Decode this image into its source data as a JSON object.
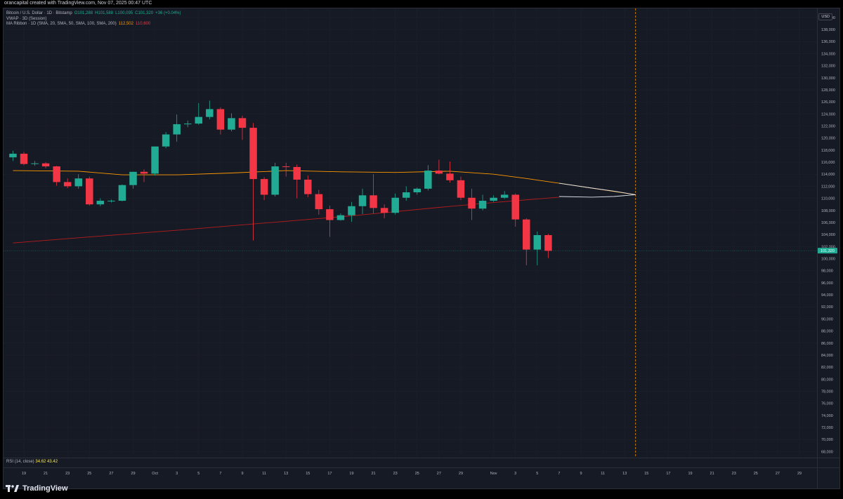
{
  "header": {
    "note": "orancapital created with TradingView.com, Nov 07, 2025 00:47 UTC"
  },
  "legend": {
    "symbol": "Bitcoin / U.S. Dollar · 1D · Bitstamp",
    "ohlc": {
      "o": "O101,288",
      "h": "H101,588",
      "l": "L100,095",
      "c": "C101,320",
      "change": "+36 (+0.04%)"
    },
    "vwap": "VWAP · 3D (Session)",
    "ma_ribbon_label": "MA Ribbon · 1D (SMA, 20, SMA, 50, SMA, 100, SMA, 200)",
    "ma_ribbon_values": [
      "112,502",
      "110,600"
    ]
  },
  "rsi": {
    "label": "RSI (14, close)",
    "value1": "34.62",
    "value2": "43.42"
  },
  "price_label": "101,320",
  "axis_currency": "USD",
  "brand": "TradingView",
  "colors": {
    "background": "#161a25",
    "up": "#22ab94",
    "down": "#f23645",
    "ma50": "#ff9800",
    "ma200": "#b71c1c",
    "vwap_band": "#e0e3eb",
    "future_line": "#ff9800"
  },
  "chart_data": {
    "type": "candlestick",
    "ylim": [
      67000,
      141500
    ],
    "y_ticks": [
      68000,
      70000,
      72000,
      74000,
      76000,
      78000,
      80000,
      82000,
      84000,
      86000,
      88000,
      90000,
      92000,
      94000,
      96000,
      98000,
      100000,
      102000,
      104000,
      106000,
      108000,
      110000,
      112000,
      114000,
      116000,
      118000,
      120000,
      122000,
      124000,
      126000,
      128000,
      130000,
      132000,
      134000,
      136000,
      138000,
      140000
    ],
    "y_tick_labels": [
      "68,000",
      "70,000",
      "72,000",
      "74,000",
      "76,000",
      "78,000",
      "80,000",
      "82,000",
      "84,000",
      "86,000",
      "88,000",
      "90,000",
      "92,000",
      "94,000",
      "96,000",
      "98,000",
      "100,000",
      "102,000",
      "104,000",
      "106,000",
      "108,000",
      "110,000",
      "112,000",
      "114,000",
      "116,000",
      "118,000",
      "120,000",
      "122,000",
      "124,000",
      "126,000",
      "128,000",
      "130,000",
      "132,000",
      "134,000",
      "136,000",
      "138,000",
      "140,000"
    ],
    "x_ticks": [
      {
        "date": "2025-09-19",
        "label": "19"
      },
      {
        "date": "2025-09-21",
        "label": "21"
      },
      {
        "date": "2025-09-23",
        "label": "23"
      },
      {
        "date": "2025-09-25",
        "label": "25"
      },
      {
        "date": "2025-09-27",
        "label": "27"
      },
      {
        "date": "2025-09-29",
        "label": "29"
      },
      {
        "date": "2025-10-01",
        "label": "Oct"
      },
      {
        "date": "2025-10-03",
        "label": "3"
      },
      {
        "date": "2025-10-05",
        "label": "5"
      },
      {
        "date": "2025-10-07",
        "label": "7"
      },
      {
        "date": "2025-10-09",
        "label": "9"
      },
      {
        "date": "2025-10-11",
        "label": "11"
      },
      {
        "date": "2025-10-13",
        "label": "13"
      },
      {
        "date": "2025-10-15",
        "label": "15"
      },
      {
        "date": "2025-10-17",
        "label": "17"
      },
      {
        "date": "2025-10-19",
        "label": "19"
      },
      {
        "date": "2025-10-21",
        "label": "21"
      },
      {
        "date": "2025-10-23",
        "label": "23"
      },
      {
        "date": "2025-10-25",
        "label": "25"
      },
      {
        "date": "2025-10-27",
        "label": "27"
      },
      {
        "date": "2025-10-29",
        "label": "29"
      },
      {
        "date": "2025-11-01",
        "label": "Nov"
      },
      {
        "date": "2025-11-03",
        "label": "3"
      },
      {
        "date": "2025-11-05",
        "label": "5"
      },
      {
        "date": "2025-11-07",
        "label": "7"
      },
      {
        "date": "2025-11-09",
        "label": "9"
      },
      {
        "date": "2025-11-11",
        "label": "11"
      },
      {
        "date": "2025-11-13",
        "label": "13"
      },
      {
        "date": "2025-11-15",
        "label": "15"
      },
      {
        "date": "2025-11-17",
        "label": "17"
      },
      {
        "date": "2025-11-19",
        "label": "19"
      },
      {
        "date": "2025-11-21",
        "label": "21"
      },
      {
        "date": "2025-11-23",
        "label": "23"
      },
      {
        "date": "2025-11-25",
        "label": "25"
      },
      {
        "date": "2025-11-27",
        "label": "27"
      },
      {
        "date": "2025-11-29",
        "label": "29"
      }
    ],
    "candles": [
      {
        "date": "2025-09-18",
        "o": 116800,
        "h": 117900,
        "l": 116200,
        "c": 117400
      },
      {
        "date": "2025-09-19",
        "o": 117400,
        "h": 117700,
        "l": 115500,
        "c": 115700
      },
      {
        "date": "2025-09-20",
        "o": 115700,
        "h": 116200,
        "l": 115400,
        "c": 115800
      },
      {
        "date": "2025-09-21",
        "o": 115800,
        "h": 116000,
        "l": 115000,
        "c": 115300
      },
      {
        "date": "2025-09-22",
        "o": 115300,
        "h": 115400,
        "l": 112100,
        "c": 112700
      },
      {
        "date": "2025-09-23",
        "o": 112700,
        "h": 113300,
        "l": 111700,
        "c": 112000
      },
      {
        "date": "2025-09-24",
        "o": 112000,
        "h": 114000,
        "l": 111600,
        "c": 113300
      },
      {
        "date": "2025-09-25",
        "o": 113300,
        "h": 113600,
        "l": 108800,
        "c": 109000
      },
      {
        "date": "2025-09-26",
        "o": 109000,
        "h": 110000,
        "l": 108700,
        "c": 109600
      },
      {
        "date": "2025-09-27",
        "o": 109600,
        "h": 109800,
        "l": 109300,
        "c": 109600
      },
      {
        "date": "2025-09-28",
        "o": 109600,
        "h": 112300,
        "l": 109500,
        "c": 112200
      },
      {
        "date": "2025-09-29",
        "o": 112200,
        "h": 114400,
        "l": 111600,
        "c": 114400
      },
      {
        "date": "2025-09-30",
        "o": 114400,
        "h": 114800,
        "l": 112700,
        "c": 114100
      },
      {
        "date": "2025-10-01",
        "o": 114100,
        "h": 118600,
        "l": 113800,
        "c": 118600
      },
      {
        "date": "2025-10-02",
        "o": 118600,
        "h": 121000,
        "l": 118300,
        "c": 120600
      },
      {
        "date": "2025-10-03",
        "o": 120600,
        "h": 123900,
        "l": 119400,
        "c": 122300
      },
      {
        "date": "2025-10-04",
        "o": 122300,
        "h": 122900,
        "l": 121800,
        "c": 122400
      },
      {
        "date": "2025-10-05",
        "o": 122400,
        "h": 125800,
        "l": 122200,
        "c": 123500
      },
      {
        "date": "2025-10-06",
        "o": 123500,
        "h": 126200,
        "l": 123100,
        "c": 124800
      },
      {
        "date": "2025-10-07",
        "o": 124800,
        "h": 125100,
        "l": 120600,
        "c": 121400
      },
      {
        "date": "2025-10-08",
        "o": 121400,
        "h": 124100,
        "l": 121100,
        "c": 123300
      },
      {
        "date": "2025-10-09",
        "o": 123300,
        "h": 123700,
        "l": 119700,
        "c": 121700
      },
      {
        "date": "2025-10-10",
        "o": 121700,
        "h": 122500,
        "l": 103000,
        "c": 113200
      },
      {
        "date": "2025-10-11",
        "o": 113200,
        "h": 113500,
        "l": 109700,
        "c": 110600
      },
      {
        "date": "2025-10-12",
        "o": 110600,
        "h": 115900,
        "l": 110300,
        "c": 115300
      },
      {
        "date": "2025-10-13",
        "o": 115300,
        "h": 115900,
        "l": 113600,
        "c": 115200
      },
      {
        "date": "2025-10-14",
        "o": 115200,
        "h": 115600,
        "l": 110000,
        "c": 113100
      },
      {
        "date": "2025-10-15",
        "o": 113100,
        "h": 113800,
        "l": 110200,
        "c": 110700
      },
      {
        "date": "2025-10-16",
        "o": 110700,
        "h": 111400,
        "l": 107300,
        "c": 108200
      },
      {
        "date": "2025-10-17",
        "o": 108200,
        "h": 108800,
        "l": 103600,
        "c": 106400
      },
      {
        "date": "2025-10-18",
        "o": 106400,
        "h": 107500,
        "l": 106300,
        "c": 107200
      },
      {
        "date": "2025-10-19",
        "o": 107200,
        "h": 109400,
        "l": 106100,
        "c": 108700
      },
      {
        "date": "2025-10-20",
        "o": 108700,
        "h": 111600,
        "l": 107400,
        "c": 110500
      },
      {
        "date": "2025-10-21",
        "o": 110500,
        "h": 114000,
        "l": 107500,
        "c": 108400
      },
      {
        "date": "2025-10-22",
        "o": 108400,
        "h": 109000,
        "l": 106700,
        "c": 107600
      },
      {
        "date": "2025-10-23",
        "o": 107600,
        "h": 110800,
        "l": 107300,
        "c": 110100
      },
      {
        "date": "2025-10-24",
        "o": 110100,
        "h": 112000,
        "l": 109600,
        "c": 111000
      },
      {
        "date": "2025-10-25",
        "o": 111000,
        "h": 111800,
        "l": 110600,
        "c": 111600
      },
      {
        "date": "2025-10-26",
        "o": 111600,
        "h": 115500,
        "l": 111300,
        "c": 114600
      },
      {
        "date": "2025-10-27",
        "o": 114600,
        "h": 116400,
        "l": 114000,
        "c": 114100
      },
      {
        "date": "2025-10-28",
        "o": 114100,
        "h": 116100,
        "l": 112600,
        "c": 113000
      },
      {
        "date": "2025-10-29",
        "o": 113000,
        "h": 113600,
        "l": 109700,
        "c": 110100
      },
      {
        "date": "2025-10-30",
        "o": 110100,
        "h": 111600,
        "l": 106400,
        "c": 108300
      },
      {
        "date": "2025-10-31",
        "o": 108300,
        "h": 110600,
        "l": 108000,
        "c": 109600
      },
      {
        "date": "2025-11-01",
        "o": 109600,
        "h": 110500,
        "l": 109400,
        "c": 110100
      },
      {
        "date": "2025-11-02",
        "o": 110100,
        "h": 111200,
        "l": 109900,
        "c": 110600
      },
      {
        "date": "2025-11-03",
        "o": 110600,
        "h": 110800,
        "l": 105300,
        "c": 106500
      },
      {
        "date": "2025-11-04",
        "o": 106500,
        "h": 106700,
        "l": 98900,
        "c": 101500
      },
      {
        "date": "2025-11-05",
        "o": 101500,
        "h": 104500,
        "l": 98900,
        "c": 103900
      },
      {
        "date": "2025-11-06",
        "o": 103900,
        "h": 104100,
        "l": 100100,
        "c": 101300
      }
    ],
    "series": [
      {
        "name": "MA 50",
        "points": [
          [
            "2025-09-18",
            114600
          ],
          [
            "2025-09-24",
            114500
          ],
          [
            "2025-09-28",
            113900
          ],
          [
            "2025-10-03",
            113900
          ],
          [
            "2025-10-08",
            114200
          ],
          [
            "2025-10-13",
            114600
          ],
          [
            "2025-10-18",
            114400
          ],
          [
            "2025-10-23",
            114300
          ],
          [
            "2025-10-28",
            114500
          ],
          [
            "2025-11-01",
            114000
          ],
          [
            "2025-11-04",
            113300
          ],
          [
            "2025-11-07",
            112500
          ],
          [
            "2025-11-10",
            111700
          ],
          [
            "2025-11-14",
            110600
          ]
        ]
      },
      {
        "name": "MA 200",
        "points": [
          [
            "2025-09-18",
            102600
          ],
          [
            "2025-09-25",
            103600
          ],
          [
            "2025-10-03",
            104700
          ],
          [
            "2025-10-11",
            105900
          ],
          [
            "2025-10-19",
            107100
          ],
          [
            "2025-10-27",
            108500
          ],
          [
            "2025-11-01",
            109300
          ],
          [
            "2025-11-07",
            110200
          ]
        ]
      },
      {
        "name": "VWAP",
        "points": [
          [
            "2025-11-07",
            112500
          ],
          [
            "2025-11-10",
            111700
          ],
          [
            "2025-11-12",
            111200
          ],
          [
            "2025-11-14",
            110600
          ]
        ]
      },
      {
        "name": "VWAP lower",
        "points": [
          [
            "2025-11-07",
            110300
          ],
          [
            "2025-11-10",
            110200
          ],
          [
            "2025-11-12",
            110300
          ],
          [
            "2025-11-14",
            110600
          ]
        ]
      }
    ],
    "current_price": 101320,
    "future_marker_date": "2025-11-14"
  }
}
